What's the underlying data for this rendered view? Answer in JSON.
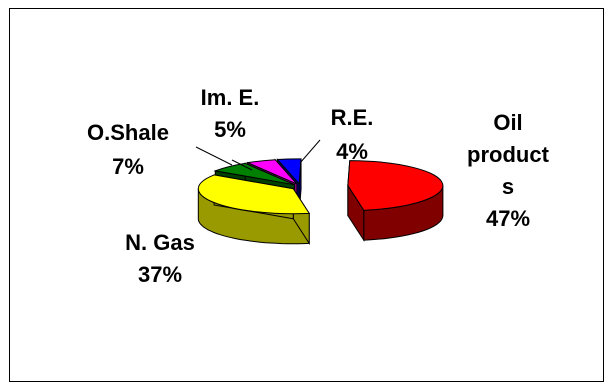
{
  "chart_data": {
    "type": "pie",
    "style": "3d-exploded",
    "slices": [
      {
        "label_lines": [
          "Oil",
          "product",
          "s"
        ],
        "percent_label": "47%",
        "value": 47,
        "color": "#ff0000",
        "side_color": "#800000"
      },
      {
        "label_lines": [
          "N. Gas"
        ],
        "percent_label": "37%",
        "value": 37,
        "color": "#ffff00",
        "side_color": "#999900"
      },
      {
        "label_lines": [
          "O.Shale"
        ],
        "percent_label": "7%",
        "value": 7,
        "color": "#008000",
        "side_color": "#004000"
      },
      {
        "label_lines": [
          "Im. E."
        ],
        "percent_label": "5%",
        "value": 5,
        "color": "#ff00ff",
        "side_color": "#800080"
      },
      {
        "label_lines": [
          "R.E."
        ],
        "percent_label": "4%",
        "value": 4,
        "color": "#0000ff",
        "side_color": "#000080"
      }
    ]
  }
}
